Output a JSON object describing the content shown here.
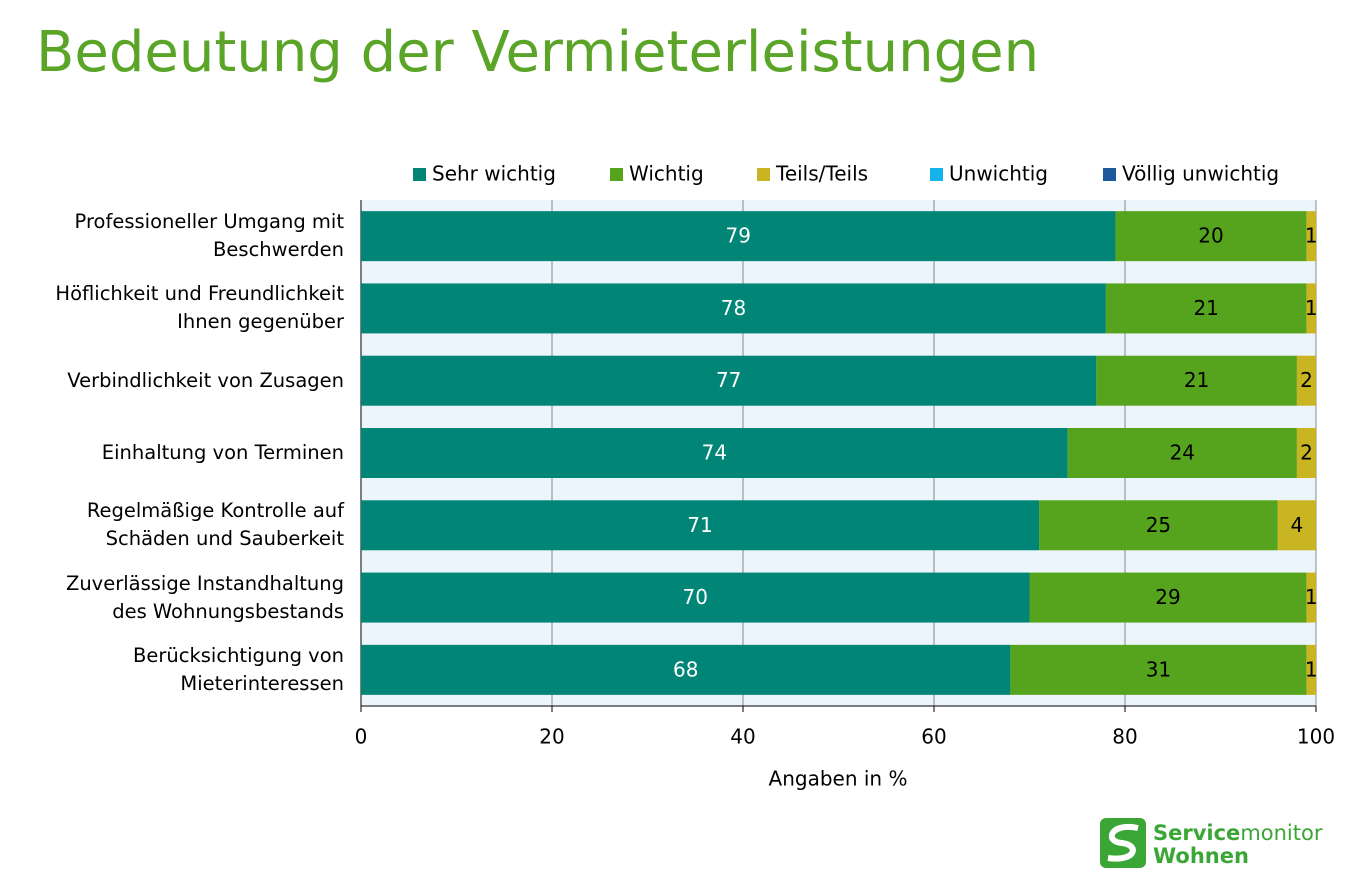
{
  "chart_data": {
    "type": "stacked_barh",
    "title": "Bedeutung der Vermieterleistungen",
    "xlabel": "Angaben in %",
    "categories": [
      "Professioneller Umgang mit\nBeschwerden",
      "Höflichkeit und Freundlichkeit\nIhnen gegenüber",
      "Verbindlichkeit von Zusagen",
      "Einhaltung von Terminen",
      "Regelmäßige Kontrolle auf\nSchäden und Sauberkeit",
      "Zuverlässige Instandhaltung\ndes Wohnungsbestands",
      "Berücksichtigung von\nMieterinteressen"
    ],
    "series": [
      {
        "name": "Sehr wichtig",
        "color": "#008577",
        "label_color": "#ffffff",
        "values": [
          79,
          78,
          77,
          74,
          71,
          70,
          68
        ]
      },
      {
        "name": "Wichtig",
        "color": "#56a41e",
        "label_color": "#000000",
        "values": [
          20,
          21,
          21,
          24,
          25,
          29,
          31
        ]
      },
      {
        "name": "Teils/Teils",
        "color": "#c9b522",
        "label_color": "#000000",
        "values": [
          1,
          1,
          2,
          2,
          4,
          1,
          1
        ]
      },
      {
        "name": "Unwichtig",
        "color": "#14b4ea",
        "label_color": "#000000",
        "values": [
          0,
          0,
          0,
          0,
          0,
          0,
          0
        ]
      },
      {
        "name": "Völlig unwichtig",
        "color": "#1c5a9c",
        "label_color": "#ffffff",
        "values": [
          0,
          0,
          0,
          0,
          0,
          0,
          0
        ]
      }
    ],
    "xlim": [
      0,
      100
    ],
    "xticks": [
      0,
      20,
      40,
      60,
      80,
      100
    ],
    "grid": true,
    "legend": "top"
  },
  "brand": {
    "bold": "Service",
    "light": "monitor",
    "second": "Wohnen"
  }
}
